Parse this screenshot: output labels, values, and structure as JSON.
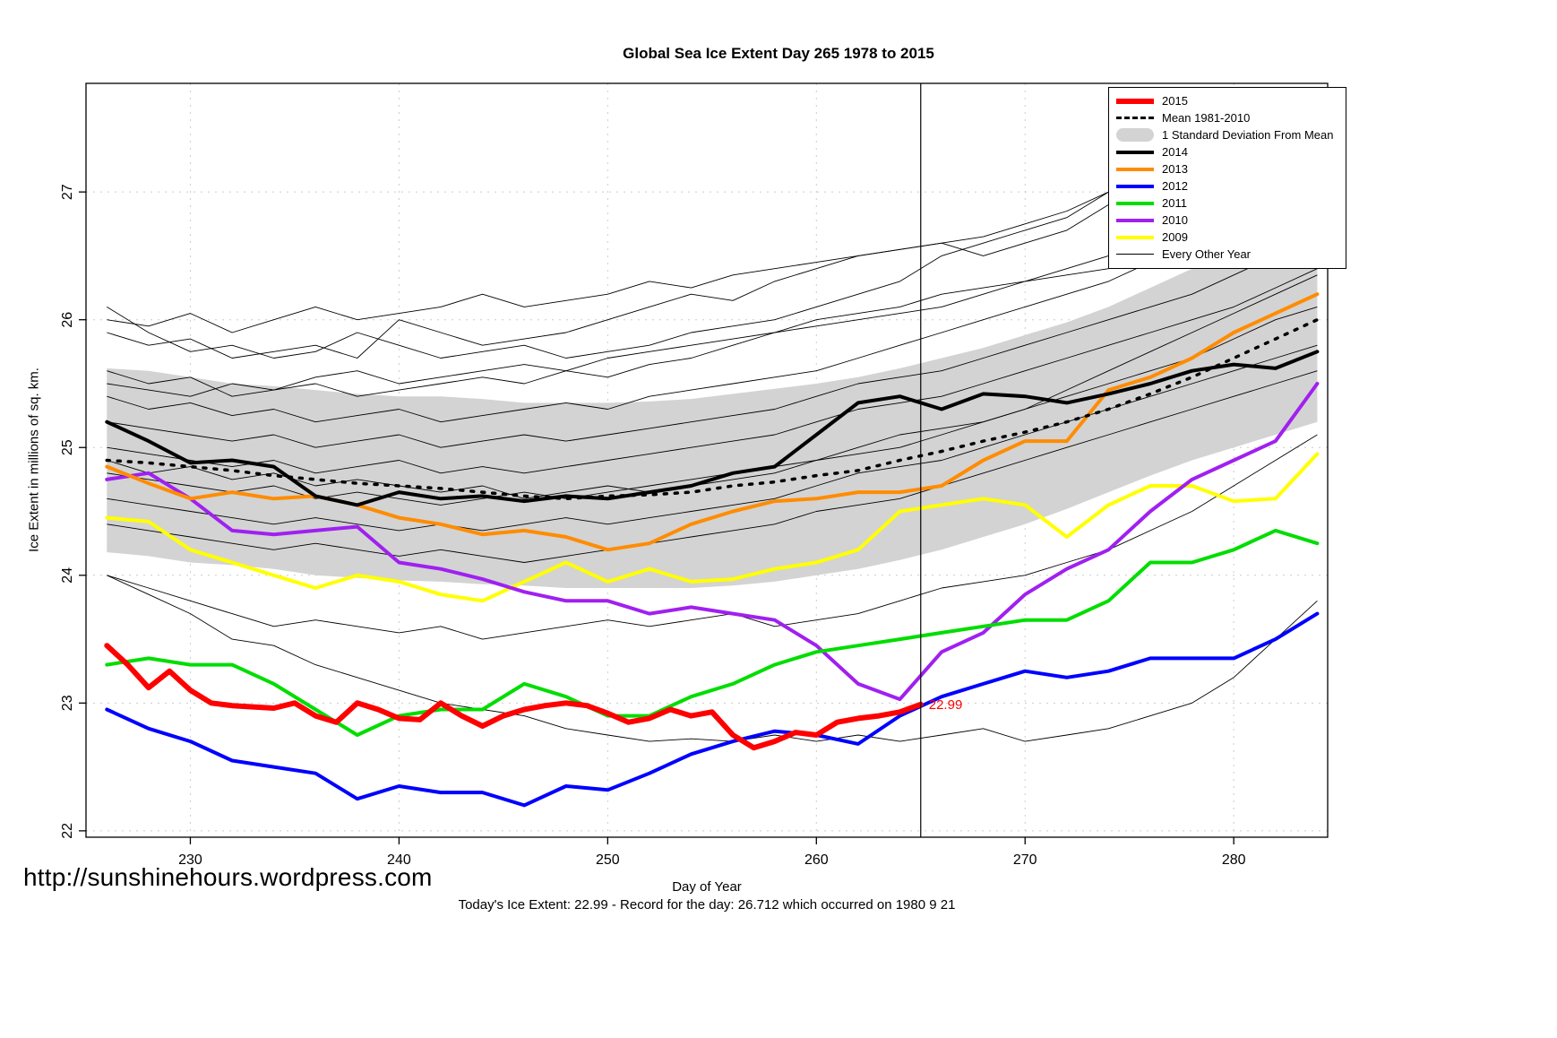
{
  "title": "Global Sea Ice Extent Day 265 1978 to 2015",
  "footer": {
    "url": "http://sunshinehours.wordpress.com",
    "status": "Today's Ice Extent: 22.99  - Record for the day: 26.712 which occurred on 1980 9 21"
  },
  "axes": {
    "x_label": "Day of Year",
    "y_label": "Ice Extent in millions of sq. km.",
    "x_ticks": [
      230,
      240,
      250,
      260,
      270,
      280
    ],
    "y_ticks": [
      22,
      23,
      24,
      25,
      26,
      27
    ],
    "xlim": [
      225,
      284.5
    ],
    "ylim": [
      21.95,
      27.85
    ]
  },
  "chart_data": {
    "type": "line",
    "title": "Global Sea Ice Extent Day 265 1978 to 2015",
    "xlabel": "Day of Year",
    "ylabel": "Ice Extent in millions of sq. km.",
    "grid": true,
    "vline_x": 265,
    "annotation": {
      "text": "22.99",
      "x": 265,
      "y": 22.99,
      "color": "#ff0000"
    },
    "band": {
      "name": "1 Standard Deviation From Mean",
      "color": "#d3d3d3",
      "x0": 226,
      "dx": 2,
      "upper": [
        25.62,
        25.6,
        25.55,
        25.5,
        25.48,
        25.45,
        25.42,
        25.4,
        25.4,
        25.38,
        25.35,
        25.35,
        25.35,
        25.36,
        25.38,
        25.42,
        25.46,
        25.5,
        25.55,
        25.62,
        25.7,
        25.78,
        25.88,
        25.98,
        26.1,
        26.25,
        26.4,
        26.55,
        26.72,
        26.9
      ],
      "lower": [
        24.18,
        24.15,
        24.1,
        24.08,
        24.05,
        24.0,
        23.98,
        23.96,
        23.95,
        23.93,
        23.92,
        23.9,
        23.9,
        23.9,
        23.9,
        23.92,
        23.95,
        24.0,
        24.05,
        24.12,
        24.2,
        24.3,
        24.4,
        24.52,
        24.65,
        24.78,
        24.9,
        25.0,
        25.1,
        25.2
      ]
    },
    "series": [
      {
        "name": "2015",
        "color": "#ff0000",
        "width": 6,
        "x0": 226,
        "dx": 1,
        "values": [
          23.45,
          23.3,
          23.12,
          23.25,
          23.1,
          23.0,
          22.98,
          22.97,
          22.96,
          23.0,
          22.9,
          22.85,
          23.0,
          22.95,
          22.88,
          22.87,
          23.0,
          22.9,
          22.82,
          22.9,
          22.95,
          22.98,
          23.0,
          22.98,
          22.92,
          22.85,
          22.88,
          22.95,
          22.9,
          22.93,
          22.75,
          22.65,
          22.7,
          22.77,
          22.75,
          22.85,
          22.88,
          22.9,
          22.93,
          22.99
        ]
      },
      {
        "name": "Mean 1981-2010",
        "color": "#000000",
        "width": 3.5,
        "dash": "3 9",
        "x0": 226,
        "dx": 2,
        "values": [
          24.9,
          24.88,
          24.85,
          24.82,
          24.78,
          24.75,
          24.72,
          24.7,
          24.68,
          24.65,
          24.62,
          24.6,
          24.62,
          24.63,
          24.65,
          24.7,
          24.73,
          24.78,
          24.82,
          24.9,
          24.97,
          25.05,
          25.12,
          25.2,
          25.3,
          25.42,
          25.55,
          25.7,
          25.85,
          26.0
        ]
      },
      {
        "name": "2014",
        "color": "#000000",
        "width": 4,
        "x0": 226,
        "dx": 2,
        "values": [
          25.2,
          25.05,
          24.88,
          24.9,
          24.85,
          24.62,
          24.55,
          24.65,
          24.6,
          24.62,
          24.58,
          24.62,
          24.6,
          24.65,
          24.7,
          24.8,
          24.85,
          25.1,
          25.35,
          25.4,
          25.3,
          25.42,
          25.4,
          25.35,
          25.42,
          25.5,
          25.6,
          25.65,
          25.62,
          25.75
        ]
      },
      {
        "name": "2013",
        "color": "#ff8c00",
        "width": 4,
        "x0": 226,
        "dx": 2,
        "values": [
          24.85,
          24.72,
          24.6,
          24.65,
          24.6,
          24.62,
          24.55,
          24.45,
          24.4,
          24.32,
          24.35,
          24.3,
          24.2,
          24.25,
          24.4,
          24.5,
          24.58,
          24.6,
          24.65,
          24.65,
          24.7,
          24.9,
          25.05,
          25.05,
          25.45,
          25.55,
          25.7,
          25.9,
          26.05,
          26.2
        ]
      },
      {
        "name": "2012",
        "color": "#0000ff",
        "width": 4,
        "x0": 226,
        "dx": 2,
        "values": [
          22.95,
          22.8,
          22.7,
          22.55,
          22.5,
          22.45,
          22.25,
          22.35,
          22.3,
          22.3,
          22.2,
          22.35,
          22.32,
          22.45,
          22.6,
          22.7,
          22.78,
          22.75,
          22.68,
          22.9,
          23.05,
          23.15,
          23.25,
          23.2,
          23.25,
          23.35,
          23.35,
          23.35,
          23.5,
          23.7
        ]
      },
      {
        "name": "2011",
        "color": "#00dd00",
        "width": 4,
        "x0": 226,
        "dx": 2,
        "values": [
          23.3,
          23.35,
          23.3,
          23.3,
          23.15,
          22.95,
          22.75,
          22.9,
          22.95,
          22.95,
          23.15,
          23.05,
          22.9,
          22.9,
          23.05,
          23.15,
          23.3,
          23.4,
          23.45,
          23.5,
          23.55,
          23.6,
          23.65,
          23.65,
          23.8,
          24.1,
          24.1,
          24.2,
          24.35,
          24.25
        ]
      },
      {
        "name": "2010",
        "color": "#a020f0",
        "width": 4,
        "x0": 226,
        "dx": 2,
        "values": [
          24.75,
          24.8,
          24.6,
          24.35,
          24.32,
          24.35,
          24.38,
          24.1,
          24.05,
          23.97,
          23.87,
          23.8,
          23.8,
          23.7,
          23.75,
          23.7,
          23.65,
          23.45,
          23.15,
          23.03,
          23.4,
          23.55,
          23.85,
          24.05,
          24.2,
          24.5,
          24.75,
          24.9,
          25.05,
          25.5
        ]
      },
      {
        "name": "2009",
        "color": "#ffff00",
        "width": 4,
        "x0": 226,
        "dx": 2,
        "values": [
          24.45,
          24.42,
          24.2,
          24.1,
          24.0,
          23.9,
          24.0,
          23.95,
          23.85,
          23.8,
          23.95,
          24.1,
          23.95,
          24.05,
          23.95,
          23.97,
          24.05,
          24.1,
          24.2,
          24.5,
          24.55,
          24.6,
          24.55,
          24.3,
          24.55,
          24.7,
          24.7,
          24.58,
          24.6,
          24.95
        ]
      }
    ],
    "background_series": {
      "name": "Every Other Year",
      "color": "#000000",
      "width": 0.9,
      "x0": 226,
      "dx": 2,
      "lines": [
        [
          26.1,
          25.9,
          25.75,
          25.8,
          25.7,
          25.75,
          25.9,
          25.8,
          25.7,
          25.75,
          25.8,
          25.7,
          25.75,
          25.8,
          25.9,
          25.95,
          26.0,
          26.1,
          26.2,
          26.3,
          26.5,
          26.6,
          26.7,
          26.8,
          27.0,
          27.1,
          27.2,
          27.3,
          27.35,
          27.45
        ],
        [
          25.9,
          25.8,
          25.85,
          25.7,
          25.75,
          25.8,
          25.7,
          26.0,
          25.9,
          25.8,
          25.85,
          25.9,
          26.0,
          26.1,
          26.2,
          26.15,
          26.3,
          26.4,
          26.5,
          26.55,
          26.6,
          26.5,
          26.6,
          26.7,
          26.9,
          27.0,
          27.1,
          27.15,
          27.2,
          27.1
        ],
        [
          25.6,
          25.5,
          25.55,
          25.4,
          25.45,
          25.5,
          25.4,
          25.45,
          25.5,
          25.55,
          25.5,
          25.6,
          25.55,
          25.65,
          25.7,
          25.8,
          25.9,
          25.95,
          26.0,
          26.05,
          26.1,
          26.2,
          26.3,
          26.4,
          26.5,
          26.6,
          26.7,
          26.9,
          27.1,
          27.2
        ],
        [
          25.4,
          25.3,
          25.35,
          25.25,
          25.3,
          25.2,
          25.25,
          25.3,
          25.2,
          25.25,
          25.3,
          25.35,
          25.3,
          25.4,
          25.45,
          25.5,
          25.55,
          25.6,
          25.7,
          25.8,
          25.9,
          26.0,
          26.1,
          26.2,
          26.3,
          26.45,
          26.6,
          26.7,
          26.85,
          27.0
        ],
        [
          25.2,
          25.15,
          25.1,
          25.05,
          25.1,
          25.0,
          25.05,
          25.1,
          25.0,
          25.05,
          25.1,
          25.05,
          25.1,
          25.15,
          25.2,
          25.25,
          25.3,
          25.4,
          25.5,
          25.55,
          25.6,
          25.7,
          25.8,
          25.9,
          26.0,
          26.1,
          26.2,
          26.35,
          26.5,
          26.6
        ],
        [
          25.0,
          24.95,
          24.9,
          24.85,
          24.9,
          24.8,
          24.85,
          24.9,
          24.8,
          24.85,
          24.8,
          24.85,
          24.9,
          24.95,
          25.0,
          25.05,
          25.1,
          25.2,
          25.3,
          25.35,
          25.4,
          25.5,
          25.6,
          25.7,
          25.8,
          25.9,
          26.0,
          26.1,
          26.25,
          26.4
        ],
        [
          24.8,
          24.75,
          24.7,
          24.65,
          24.7,
          24.6,
          24.65,
          24.6,
          24.55,
          24.6,
          24.65,
          24.6,
          24.65,
          24.7,
          24.75,
          24.8,
          24.85,
          24.9,
          25.0,
          25.1,
          25.15,
          25.2,
          25.3,
          25.4,
          25.5,
          25.6,
          25.7,
          25.85,
          26.0,
          26.1
        ],
        [
          24.6,
          24.55,
          24.5,
          24.45,
          24.4,
          24.45,
          24.4,
          24.35,
          24.4,
          24.35,
          24.4,
          24.45,
          24.4,
          24.45,
          24.5,
          24.55,
          24.6,
          24.7,
          24.8,
          24.85,
          24.9,
          25.0,
          25.1,
          25.2,
          25.3,
          25.4,
          25.5,
          25.6,
          25.7,
          25.8
        ],
        [
          24.4,
          24.35,
          24.3,
          24.25,
          24.2,
          24.25,
          24.2,
          24.15,
          24.2,
          24.15,
          24.1,
          24.15,
          24.2,
          24.25,
          24.3,
          24.35,
          24.4,
          24.5,
          24.55,
          24.6,
          24.7,
          24.8,
          24.9,
          25.0,
          25.1,
          25.2,
          25.3,
          25.4,
          25.5,
          25.6
        ],
        [
          24.0,
          23.9,
          23.8,
          23.7,
          23.6,
          23.65,
          23.6,
          23.55,
          23.6,
          23.5,
          23.55,
          23.6,
          23.65,
          23.6,
          23.65,
          23.7,
          23.6,
          23.65,
          23.7,
          23.8,
          23.9,
          23.95,
          24.0,
          24.1,
          24.2,
          24.35,
          24.5,
          24.7,
          24.9,
          25.1
        ],
        [
          24.0,
          23.85,
          23.7,
          23.5,
          23.45,
          23.3,
          23.2,
          23.1,
          23.0,
          22.95,
          22.9,
          22.8,
          22.75,
          22.7,
          22.72,
          22.7,
          22.75,
          22.7,
          22.75,
          22.7,
          22.75,
          22.8,
          22.7,
          22.75,
          22.8,
          22.9,
          23.0,
          23.2,
          23.5,
          23.8
        ],
        [
          25.5,
          25.45,
          25.4,
          25.5,
          25.45,
          25.55,
          25.6,
          25.5,
          25.55,
          25.6,
          25.65,
          25.6,
          25.7,
          25.75,
          25.8,
          25.85,
          25.9,
          26.0,
          26.05,
          26.1,
          26.2,
          26.25,
          26.3,
          26.35,
          26.4,
          26.5,
          26.55,
          26.65,
          26.7,
          26.8
        ],
        [
          24.9,
          24.8,
          24.85,
          24.75,
          24.8,
          24.7,
          24.75,
          24.7,
          24.65,
          24.7,
          24.6,
          24.65,
          24.7,
          24.65,
          24.7,
          24.75,
          24.8,
          24.9,
          24.95,
          25.0,
          25.1,
          25.2,
          25.3,
          25.45,
          25.6,
          25.75,
          25.9,
          26.05,
          26.2,
          26.35
        ],
        [
          26.0,
          25.95,
          26.05,
          25.9,
          26.0,
          26.1,
          26.0,
          26.05,
          26.1,
          26.2,
          26.1,
          26.15,
          26.2,
          26.3,
          26.25,
          26.35,
          26.4,
          26.45,
          26.5,
          26.55,
          26.6,
          26.65,
          26.75,
          26.85,
          27.0,
          27.1,
          27.25,
          27.35,
          27.45,
          27.55
        ]
      ]
    },
    "legend": {
      "position": "top-right",
      "items": [
        {
          "label": "2015",
          "swatch": "line",
          "color": "#ff0000",
          "thickness": 6
        },
        {
          "label": "Mean 1981-2010",
          "swatch": "dashed-line",
          "color": "#000000",
          "thickness": 3
        },
        {
          "label": "1 Standard Deviation From Mean",
          "swatch": "band",
          "color": "#d3d3d3",
          "thickness": 15
        },
        {
          "label": "2014",
          "swatch": "line",
          "color": "#000000",
          "thickness": 4
        },
        {
          "label": "2013",
          "swatch": "line",
          "color": "#ff8c00",
          "thickness": 4
        },
        {
          "label": "2012",
          "swatch": "line",
          "color": "#0000ff",
          "thickness": 4
        },
        {
          "label": "2011",
          "swatch": "line",
          "color": "#00dd00",
          "thickness": 4
        },
        {
          "label": "2010",
          "swatch": "line",
          "color": "#a020f0",
          "thickness": 4
        },
        {
          "label": "2009",
          "swatch": "line",
          "color": "#ffff00",
          "thickness": 4
        },
        {
          "label": "Every Other Year",
          "swatch": "thin-line",
          "color": "#000000",
          "thickness": 1.5
        }
      ]
    }
  }
}
